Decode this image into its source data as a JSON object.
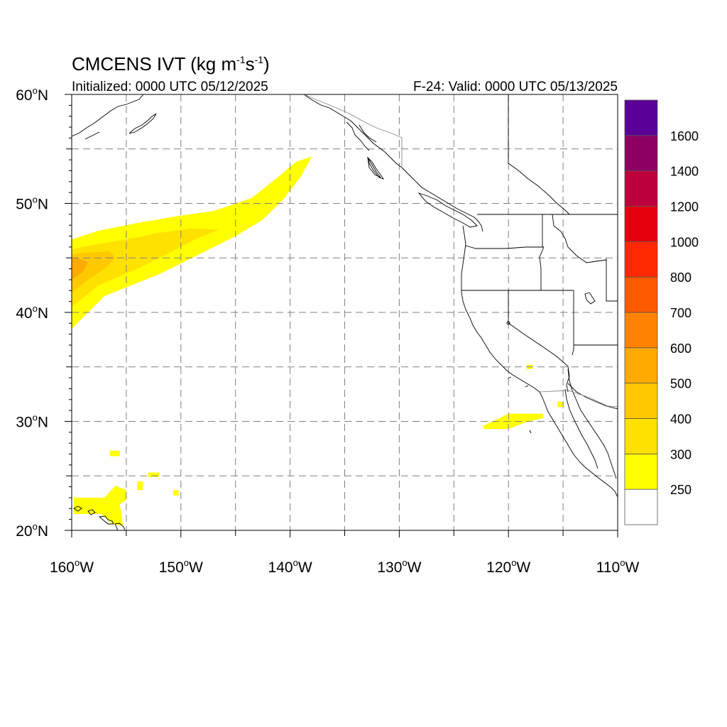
{
  "header": {
    "title": "CMCENS IVT (kg m",
    "title_exp1": "-1",
    "title_mid": "s",
    "title_exp2": "-1",
    "title_end": ")",
    "initialized": "Initialized: 0000 UTC 05/12/2025",
    "valid": "F-24: Valid: 0000 UTC 05/13/2025"
  },
  "axes": {
    "lat_labels": [
      {
        "deg": "60",
        "hemi": "N",
        "value": 60
      },
      {
        "deg": "50",
        "hemi": "N",
        "value": 50
      },
      {
        "deg": "40",
        "hemi": "N",
        "value": 40
      },
      {
        "deg": "30",
        "hemi": "N",
        "value": 30
      },
      {
        "deg": "20",
        "hemi": "N",
        "value": 20
      }
    ],
    "lon_labels": [
      {
        "deg": "160",
        "hemi": "W",
        "value": -160
      },
      {
        "deg": "150",
        "hemi": "W",
        "value": -150
      },
      {
        "deg": "140",
        "hemi": "W",
        "value": -140
      },
      {
        "deg": "130",
        "hemi": "W",
        "value": -130
      },
      {
        "deg": "120",
        "hemi": "W",
        "value": -120
      },
      {
        "deg": "110",
        "hemi": "W",
        "value": -110
      }
    ],
    "lon_range": [
      -160,
      -110
    ],
    "lat_range": [
      20,
      60
    ],
    "grid_lon_step": 5,
    "grid_lat_step": 5
  },
  "colorbar": {
    "levels": [
      "250",
      "300",
      "400",
      "500",
      "600",
      "700",
      "800",
      "1000",
      "1200",
      "1400",
      "1600"
    ],
    "colors": [
      "#ffffff",
      "#ffff00",
      "#ffe100",
      "#ffc800",
      "#ffaa00",
      "#ff8200",
      "#ff5a00",
      "#ff2800",
      "#e6000f",
      "#be003c",
      "#8c0064",
      "#5a0096"
    ]
  },
  "map_data": {
    "type": "filled-contour",
    "variable": "IVT",
    "features": [
      {
        "level_index": 1,
        "polygon": [
          [
            -160,
            38.5
          ],
          [
            -157,
            41.5
          ],
          [
            -152,
            43.5
          ],
          [
            -148,
            45.5
          ],
          [
            -145,
            47.0
          ],
          [
            -142.5,
            48.5
          ],
          [
            -140.5,
            50.5
          ],
          [
            -139,
            52.5
          ],
          [
            -138,
            54.3
          ],
          [
            -139.5,
            53.8
          ],
          [
            -141,
            52.5
          ],
          [
            -143.5,
            50.5
          ],
          [
            -147,
            49.3
          ],
          [
            -150.5,
            48.8
          ],
          [
            -154,
            48.2
          ],
          [
            -157.5,
            47.5
          ],
          [
            -160,
            46.7
          ]
        ]
      },
      {
        "level_index": 1,
        "polygon": [
          [
            -156.5,
            27.3
          ],
          [
            -155.6,
            27.3
          ],
          [
            -155.6,
            26.8
          ],
          [
            -156.5,
            26.8
          ]
        ]
      },
      {
        "level_index": 1,
        "polygon": [
          [
            -153.0,
            25.3
          ],
          [
            -152.0,
            25.3
          ],
          [
            -152.0,
            24.9
          ],
          [
            -153.0,
            24.9
          ]
        ]
      },
      {
        "level_index": 1,
        "polygon": [
          [
            -154.0,
            24.5
          ],
          [
            -153.5,
            24.5
          ],
          [
            -153.5,
            23.7
          ],
          [
            -154.0,
            23.7
          ]
        ]
      },
      {
        "level_index": 1,
        "polygon": [
          [
            -150.7,
            23.7
          ],
          [
            -150.2,
            23.7
          ],
          [
            -150.2,
            23.2
          ],
          [
            -150.7,
            23.2
          ]
        ]
      },
      {
        "level_index": 1,
        "polygon": [
          [
            -159.8,
            23.0
          ],
          [
            -157.0,
            23.0
          ],
          [
            -156.0,
            24.1
          ],
          [
            -155.0,
            23.7
          ],
          [
            -155.0,
            22.8
          ],
          [
            -155.6,
            22.4
          ],
          [
            -155.3,
            20.4
          ],
          [
            -156.3,
            20.6
          ],
          [
            -157.3,
            21.5
          ],
          [
            -159.8,
            21.5
          ]
        ]
      },
      {
        "level_index": 1,
        "polygon": [
          [
            -122.3,
            29.3
          ],
          [
            -120.0,
            29.3
          ],
          [
            -118.2,
            30.0
          ],
          [
            -116.8,
            30.3
          ],
          [
            -116.8,
            30.7
          ],
          [
            -120.0,
            30.7
          ],
          [
            -121.0,
            30.2
          ],
          [
            -122.3,
            29.6
          ]
        ]
      },
      {
        "level_index": 1,
        "polygon": [
          [
            -118.3,
            35.2
          ],
          [
            -117.8,
            35.2
          ],
          [
            -117.8,
            34.8
          ],
          [
            -118.3,
            34.8
          ]
        ]
      },
      {
        "level_index": 1,
        "polygon": [
          [
            -115.5,
            31.8
          ],
          [
            -115.0,
            31.8
          ],
          [
            -115.0,
            31.3
          ],
          [
            -115.5,
            31.3
          ]
        ]
      },
      {
        "level_index": 2,
        "polygon": [
          [
            -160,
            40.5
          ],
          [
            -157.5,
            42.5
          ],
          [
            -154,
            44.0
          ],
          [
            -151,
            45.5
          ],
          [
            -148.5,
            46.8
          ],
          [
            -146.5,
            47.6
          ],
          [
            -149,
            47.7
          ],
          [
            -152,
            47.3
          ],
          [
            -155,
            46.7
          ],
          [
            -158,
            46.2
          ],
          [
            -160,
            45.8
          ]
        ]
      },
      {
        "level_index": 3,
        "polygon": [
          [
            -160,
            41.8
          ],
          [
            -158.5,
            43.0
          ],
          [
            -157,
            44.0
          ],
          [
            -156,
            45.0
          ],
          [
            -156.5,
            45.6
          ],
          [
            -158.5,
            45.5
          ],
          [
            -160,
            45.3
          ]
        ]
      },
      {
        "level_index": 4,
        "polygon": [
          [
            -160,
            43.0
          ],
          [
            -159,
            43.7
          ],
          [
            -158.5,
            44.6
          ],
          [
            -159.5,
            45.0
          ],
          [
            -160,
            44.9
          ]
        ]
      }
    ],
    "places": [
      "Hawaiian Islands",
      "Alaska",
      "British Columbia",
      "Washington",
      "Oregon",
      "California",
      "Nevada",
      "Idaho",
      "Baja California"
    ]
  }
}
